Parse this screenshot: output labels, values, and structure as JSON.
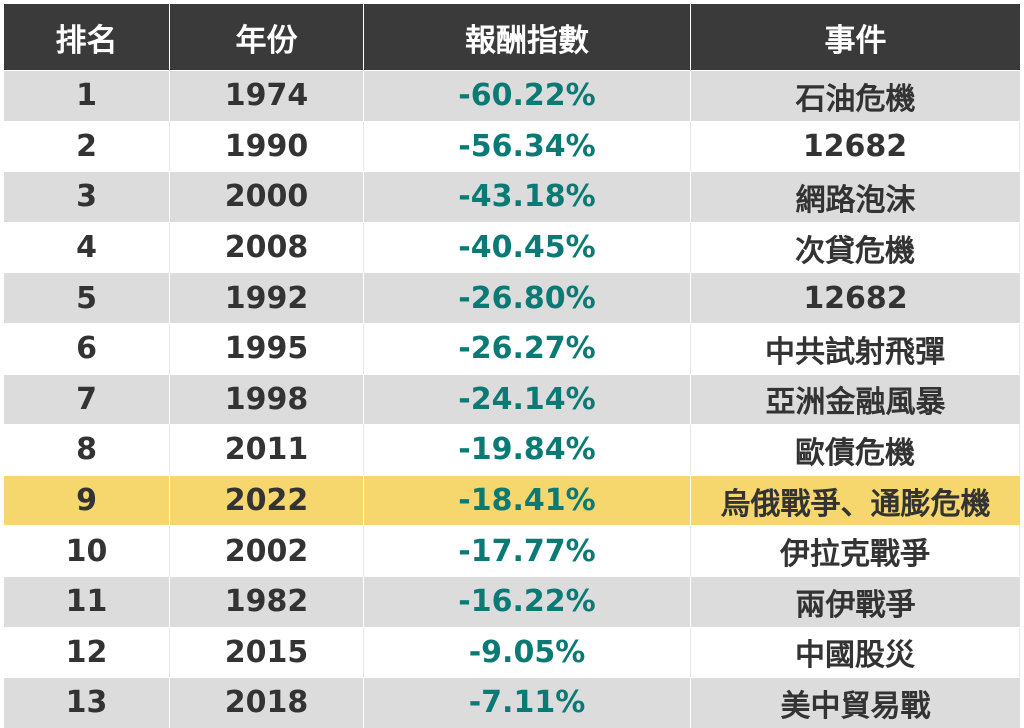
{
  "headers": [
    "排名",
    "年份",
    "報酬指數",
    "事件"
  ],
  "rows": [
    {
      "rank": "1",
      "year": "1974",
      "return": "-60.22%",
      "event": "石油危機"
    },
    {
      "rank": "2",
      "year": "1990",
      "return": "-56.34%",
      "event": "12682"
    },
    {
      "rank": "3",
      "year": "2000",
      "return": "-43.18%",
      "event": "網路泡沫"
    },
    {
      "rank": "4",
      "year": "2008",
      "return": "-40.45%",
      "event": "次貸危機"
    },
    {
      "rank": "5",
      "year": "1992",
      "return": "-26.80%",
      "event": "12682"
    },
    {
      "rank": "6",
      "year": "1995",
      "return": "-26.27%",
      "event": "中共試射飛彈"
    },
    {
      "rank": "7",
      "year": "1998",
      "return": "-24.14%",
      "event": "亞洲金融風暴"
    },
    {
      "rank": "8",
      "year": "2011",
      "return": "-19.84%",
      "event": "歐債危機"
    },
    {
      "rank": "9",
      "year": "2022",
      "return": "-18.41%",
      "event": "烏俄戰爭、通膨危機"
    },
    {
      "rank": "10",
      "year": "2002",
      "return": "-17.77%",
      "event": "伊拉克戰爭"
    },
    {
      "rank": "11",
      "year": "1982",
      "return": "-16.22%",
      "event": "兩伊戰爭"
    },
    {
      "rank": "12",
      "year": "2015",
      "return": "-9.05%",
      "event": "中國股災"
    },
    {
      "rank": "13",
      "year": "2018",
      "return": "-7.11%",
      "event": "美中貿易戰"
    }
  ],
  "colors": {
    "header_bg": "#3a3a3a",
    "odd_row_bg": "#dcdcdc",
    "even_row_bg": "#ffffff",
    "highlight_bg": "#f5d76e",
    "return_text": "#0b7a75",
    "body_text": "#333333"
  },
  "highlighted_rank": "9"
}
